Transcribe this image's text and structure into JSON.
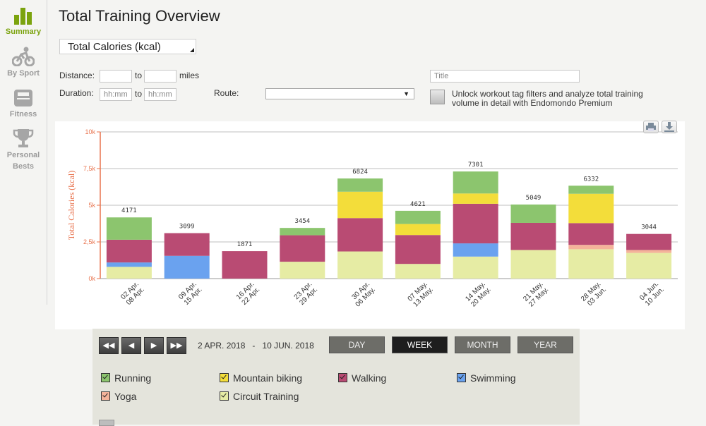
{
  "sidebar": {
    "items": [
      {
        "label": "Summary",
        "icon": "bar-chart-icon",
        "active": true
      },
      {
        "label": "By Sport",
        "icon": "cyclist-icon",
        "active": false
      },
      {
        "label": "Fitness",
        "icon": "scale-icon",
        "active": false
      },
      {
        "label_line1": "Personal",
        "label_line2": "Bests",
        "icon": "trophy-icon",
        "active": false
      }
    ]
  },
  "page": {
    "title": "Total Training Overview"
  },
  "metric_select": {
    "value": "Total Calories (kcal)"
  },
  "filters": {
    "distance_label": "Distance:",
    "to_label": "to",
    "miles_label": "miles",
    "duration_label": "Duration:",
    "duration_placeholder": "hh:mm",
    "route_label": "Route:",
    "title_placeholder": "Title",
    "premium_text": "Unlock workout tag filters and analyze total training volume in detail with Endomondo Premium"
  },
  "controls": {
    "date_from": "2 APR. 2018",
    "date_sep": "-",
    "date_to": "10 JUN. 2018",
    "periods": [
      "DAY",
      "WEEK",
      "MONTH",
      "YEAR"
    ],
    "active_period": "WEEK"
  },
  "colors": {
    "Running": "#8cc56e",
    "Mountain biking": "#f3dd3a",
    "Walking": "#b94b73",
    "Swimming": "#6aa2ef",
    "Yoga": "#f4b39a",
    "Circuit Training": "#e6eca4",
    "axis": "#e8734e"
  },
  "legend": [
    "Running",
    "Mountain biking",
    "Walking",
    "Swimming",
    "Yoga",
    "Circuit Training"
  ],
  "chart_data": {
    "type": "bar",
    "stacked": true,
    "ylabel": "Total Calories (kcal)",
    "ylim": [
      0,
      10000
    ],
    "yticks": [
      "0k",
      "2,5k",
      "5k",
      "7,5k",
      "10k"
    ],
    "categories": [
      [
        "02 Apr.",
        "08 Apr."
      ],
      [
        "09 Apr.",
        "15 Apr."
      ],
      [
        "16 Apr.",
        "22 Apr."
      ],
      [
        "23 Apr.",
        "29 Apr."
      ],
      [
        "30 Apr.",
        "06 May."
      ],
      [
        "07 May.",
        "13 May."
      ],
      [
        "14 May.",
        "20 May."
      ],
      [
        "21 May.",
        "27 May."
      ],
      [
        "28 May.",
        "03 Jun."
      ],
      [
        "04 Jun.",
        "10 Jun."
      ]
    ],
    "totals": [
      4171,
      3099,
      1871,
      3454,
      6824,
      4621,
      7301,
      5049,
      6332,
      3044
    ],
    "series": [
      {
        "name": "Circuit Training",
        "values": [
          800,
          0,
          0,
          1150,
          1850,
          1000,
          1500,
          1950,
          2000,
          1750
        ]
      },
      {
        "name": "Yoga",
        "values": [
          0,
          0,
          0,
          0,
          0,
          0,
          0,
          0,
          300,
          200
        ]
      },
      {
        "name": "Swimming",
        "values": [
          300,
          1550,
          0,
          0,
          0,
          0,
          900,
          0,
          0,
          0
        ]
      },
      {
        "name": "Walking",
        "values": [
          1550,
          1549,
          1871,
          1804,
          2274,
          1971,
          2701,
          1849,
          1482,
          1094
        ]
      },
      {
        "name": "Mountain biking",
        "values": [
          0,
          0,
          0,
          0,
          1800,
          750,
          700,
          0,
          2000,
          0
        ]
      },
      {
        "name": "Running",
        "values": [
          1521,
          0,
          0,
          500,
          900,
          900,
          1500,
          1250,
          550,
          0
        ]
      }
    ]
  }
}
